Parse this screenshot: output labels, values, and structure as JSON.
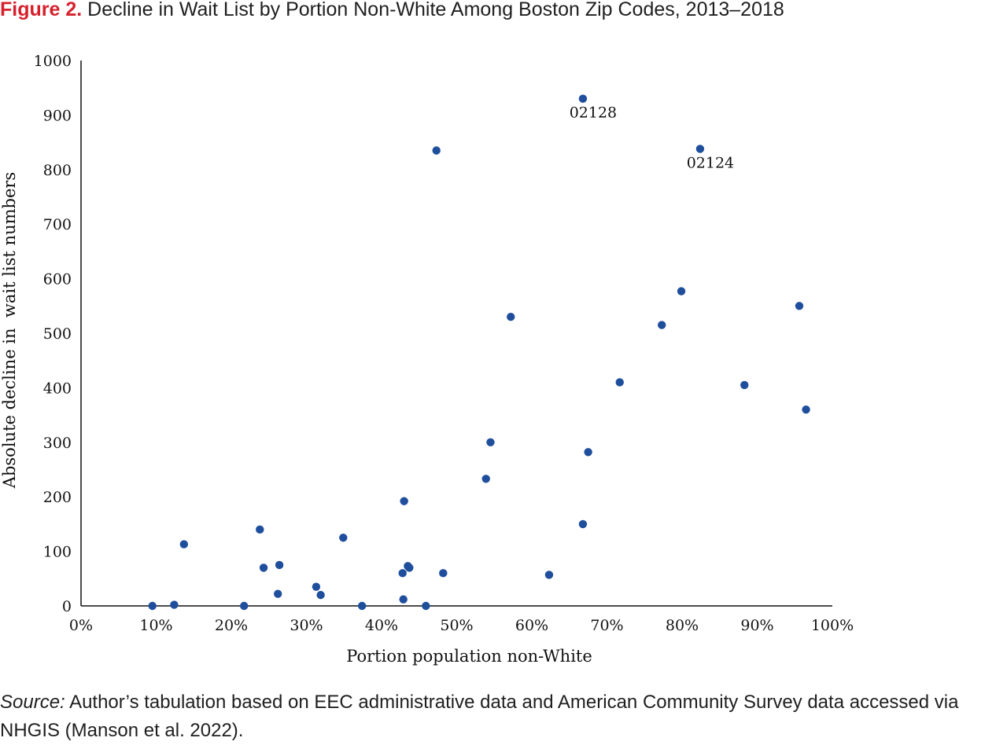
{
  "figure": {
    "label": "Figure 2.",
    "title": "Decline in Wait List by Portion Non-White Among Boston Zip Codes, 2013–2018"
  },
  "source": {
    "label": "Source:",
    "text": "Author’s tabulation based on EEC administrative data and American Community Survey data accessed via NHGIS (Manson et al. 2022)."
  },
  "chart_data": {
    "type": "scatter",
    "xlabel": "Portion population non-White",
    "ylabel": "Absolute decline in  wait list numbers",
    "xlim": [
      0,
      100
    ],
    "ylim": [
      0,
      1000
    ],
    "x_ticks": [
      "0%",
      "10%",
      "20%",
      "30%",
      "40%",
      "50%",
      "60%",
      "70%",
      "80%",
      "90%",
      "100%"
    ],
    "y_ticks": [
      "0",
      "100",
      "200",
      "300",
      "400",
      "500",
      "600",
      "700",
      "800",
      "900",
      "1000"
    ],
    "grid": false,
    "marker_color": "#1f4f9c",
    "points": [
      {
        "x": 9.5,
        "y": 0
      },
      {
        "x": 12.4,
        "y": 2
      },
      {
        "x": 13.7,
        "y": 113
      },
      {
        "x": 21.7,
        "y": 0
      },
      {
        "x": 23.8,
        "y": 140
      },
      {
        "x": 24.3,
        "y": 70
      },
      {
        "x": 26.2,
        "y": 22
      },
      {
        "x": 26.4,
        "y": 75
      },
      {
        "x": 31.3,
        "y": 35
      },
      {
        "x": 31.9,
        "y": 20
      },
      {
        "x": 34.9,
        "y": 125
      },
      {
        "x": 37.4,
        "y": 0
      },
      {
        "x": 42.8,
        "y": 60
      },
      {
        "x": 42.9,
        "y": 12
      },
      {
        "x": 43.0,
        "y": 192
      },
      {
        "x": 43.5,
        "y": 73
      },
      {
        "x": 43.7,
        "y": 70
      },
      {
        "x": 45.9,
        "y": 0
      },
      {
        "x": 47.3,
        "y": 835
      },
      {
        "x": 48.2,
        "y": 60
      },
      {
        "x": 53.9,
        "y": 233
      },
      {
        "x": 54.5,
        "y": 300
      },
      {
        "x": 57.2,
        "y": 530
      },
      {
        "x": 62.3,
        "y": 57
      },
      {
        "x": 66.8,
        "y": 150
      },
      {
        "x": 66.8,
        "y": 930,
        "label": "02128"
      },
      {
        "x": 67.5,
        "y": 282
      },
      {
        "x": 71.7,
        "y": 410
      },
      {
        "x": 77.3,
        "y": 515
      },
      {
        "x": 79.9,
        "y": 577
      },
      {
        "x": 82.4,
        "y": 838,
        "label": "02124"
      },
      {
        "x": 88.3,
        "y": 405
      },
      {
        "x": 95.6,
        "y": 550
      },
      {
        "x": 96.5,
        "y": 360
      }
    ]
  }
}
